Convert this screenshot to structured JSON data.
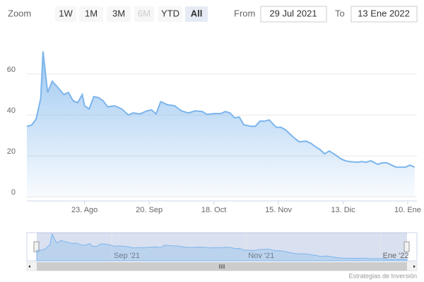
{
  "range_selector": {
    "zoom_label": "Zoom",
    "buttons": [
      "1W",
      "1M",
      "3M",
      "6M",
      "YTD",
      "All"
    ],
    "selected": 5,
    "disabled": [
      3
    ],
    "from_label": "From",
    "from": "29 Jul 2021",
    "to_label": "To",
    "to": "13 Ene 2022"
  },
  "chart_data": {
    "type": "area",
    "x": [
      "2021-07-29",
      "2021-07-31",
      "2021-08-02",
      "2021-08-04",
      "2021-08-05",
      "2021-08-07",
      "2021-08-09",
      "2021-08-11",
      "2021-08-14",
      "2021-08-16",
      "2021-08-18",
      "2021-08-20",
      "2021-08-22",
      "2021-08-23",
      "2021-08-25",
      "2021-08-27",
      "2021-08-29",
      "2021-08-31",
      "2021-09-02",
      "2021-09-05",
      "2021-09-08",
      "2021-09-11",
      "2021-09-13",
      "2021-09-16",
      "2021-09-19",
      "2021-09-21",
      "2021-09-23",
      "2021-09-25",
      "2021-09-28",
      "2021-10-01",
      "2021-10-04",
      "2021-10-07",
      "2021-10-10",
      "2021-10-13",
      "2021-10-15",
      "2021-10-18",
      "2021-10-21",
      "2021-10-23",
      "2021-10-25",
      "2021-10-27",
      "2021-10-29",
      "2021-10-31",
      "2021-11-03",
      "2021-11-05",
      "2021-11-07",
      "2021-11-09",
      "2021-11-11",
      "2021-11-14",
      "2021-11-16",
      "2021-11-18",
      "2021-11-20",
      "2021-11-22",
      "2021-11-24",
      "2021-11-27",
      "2021-11-29",
      "2021-12-01",
      "2021-12-03",
      "2021-12-05",
      "2021-12-07",
      "2021-12-10",
      "2021-12-12",
      "2021-12-14",
      "2021-12-16",
      "2021-12-19",
      "2021-12-21",
      "2021-12-23",
      "2021-12-25",
      "2021-12-28",
      "2021-12-30",
      "2022-01-01",
      "2022-01-03",
      "2022-01-05",
      "2022-01-07",
      "2022-01-09",
      "2022-01-11",
      "2022-01-13"
    ],
    "series": [
      {
        "color": "#7cb5ec",
        "values": [
          34.5,
          35,
          38,
          48,
          71,
          51,
          56.5,
          54,
          50,
          51,
          47,
          46,
          50,
          44.5,
          43,
          49,
          48.5,
          47,
          44,
          44.5,
          43,
          40,
          41,
          40.5,
          42,
          42.5,
          40.5,
          46.5,
          45,
          44.5,
          42,
          41,
          42,
          41.7,
          40.3,
          40.7,
          40.7,
          41.7,
          41,
          38.6,
          39,
          35.2,
          34.5,
          34.5,
          37,
          37,
          37.6,
          34,
          34,
          32.8,
          30.7,
          28.6,
          26.9,
          27.2,
          26.2,
          24.5,
          23.1,
          21,
          22.4,
          20.3,
          18.6,
          17.6,
          17.2,
          16.9,
          17.2,
          16.9,
          17.6,
          15.9,
          16.6,
          16.6,
          15.5,
          14.5,
          14.5,
          14.5,
          15.5,
          14.5
        ]
      }
    ],
    "xlim": [
      "2021-07-29",
      "2022-01-14"
    ],
    "xticks": [
      {
        "value": "2021-08-23",
        "label": "23. Ago"
      },
      {
        "value": "2021-09-20",
        "label": "20. Sep"
      },
      {
        "value": "2021-10-18",
        "label": "18. Oct"
      },
      {
        "value": "2021-11-15",
        "label": "15. Nov"
      },
      {
        "value": "2021-12-13",
        "label": "13. Dic"
      },
      {
        "value": "2022-01-10",
        "label": "10. Ene"
      }
    ],
    "ylim": [
      -2,
      80
    ],
    "yticks": [
      0,
      20,
      40,
      60
    ],
    "grid": true
  },
  "navigator": {
    "xticks": [
      {
        "value": "2021-09-01",
        "label": "Sep '21"
      },
      {
        "value": "2021-11-01",
        "label": "Nov '21"
      },
      {
        "value": "2022-01-01",
        "label": "Ene '22"
      }
    ]
  },
  "credits": "Estrategias de Inversión"
}
